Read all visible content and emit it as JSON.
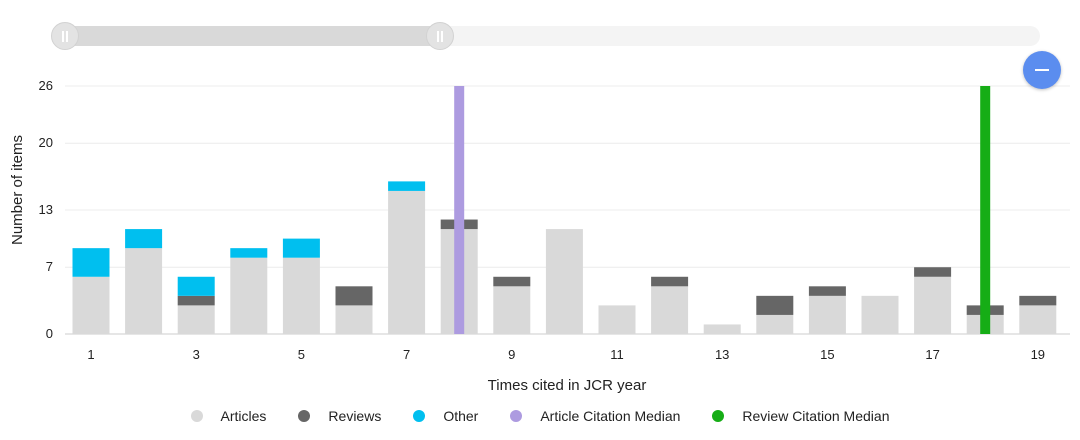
{
  "colors": {
    "articles": "#d9d9d9",
    "reviews": "#666666",
    "other": "#00bfef",
    "article_median": "#ad9be0",
    "review_median": "#16ad16",
    "zoom_button": "#5b8def"
  },
  "range_slider": {
    "start": 1,
    "end": 19
  },
  "zoom_button": {
    "icon": "minus-icon"
  },
  "legend": {
    "articles": "Articles",
    "reviews": "Reviews",
    "other": "Other",
    "article_median": "Article Citation Median",
    "review_median": "Review Citation Median"
  },
  "chart_data": {
    "type": "bar",
    "stacked": true,
    "xlabel": "Times cited in JCR year",
    "ylabel": "Number of items",
    "x": [
      1,
      2,
      3,
      4,
      5,
      6,
      7,
      8,
      9,
      10,
      11,
      12,
      13,
      14,
      15,
      16,
      17,
      18,
      19
    ],
    "x_tick_labels": [
      "1",
      "3",
      "5",
      "7",
      "9",
      "11",
      "13",
      "15",
      "17",
      "19"
    ],
    "y_tick_labels": [
      "0",
      "7",
      "13",
      "20",
      "26"
    ],
    "ylim": [
      0,
      26
    ],
    "grid": true,
    "legend_position": "bottom",
    "series": [
      {
        "name": "Articles",
        "values": [
          6,
          9,
          3,
          8,
          8,
          3,
          15,
          11,
          5,
          11,
          3,
          5,
          1,
          2,
          4,
          4,
          6,
          2,
          3
        ]
      },
      {
        "name": "Reviews",
        "values": [
          0,
          0,
          1,
          0,
          0,
          2,
          0,
          1,
          1,
          0,
          0,
          1,
          0,
          2,
          1,
          0,
          1,
          1,
          1
        ]
      },
      {
        "name": "Other",
        "values": [
          3,
          2,
          2,
          1,
          2,
          0,
          1,
          0,
          0,
          0,
          0,
          0,
          0,
          0,
          0,
          0,
          0,
          0,
          0
        ]
      }
    ],
    "median_lines": [
      {
        "name": "Article Citation Median",
        "x": 8
      },
      {
        "name": "Review Citation Median",
        "x": 18
      }
    ]
  }
}
